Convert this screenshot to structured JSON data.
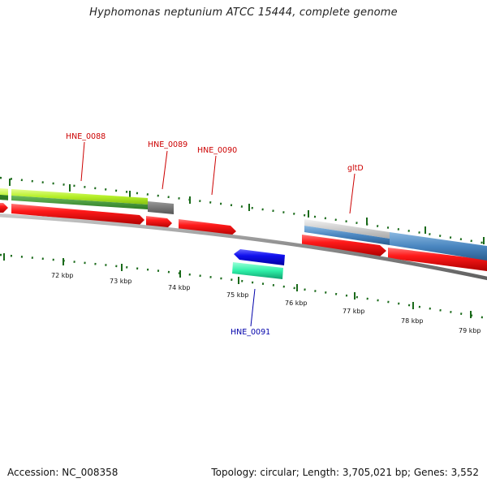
{
  "title": "Hyphomonas neptunium ATCC 15444, complete genome",
  "footer": {
    "accession": "Accession: NC_008358",
    "summary": "Topology: circular; Length: 3,705,021 bp; Genes: 3,552"
  },
  "colors": {
    "cds_forward": "#ee1111",
    "cds_reverse": "#1111dd",
    "backbone": "#7a7a7a",
    "tick": "#1a6a1a",
    "label_forward": "#cc0000",
    "label_reverse": "#0000aa"
  },
  "gene_labels": [
    {
      "text": "HNE_0088",
      "strand": "forward"
    },
    {
      "text": "HNE_0089",
      "strand": "forward"
    },
    {
      "text": "HNE_0090",
      "strand": "forward"
    },
    {
      "text": "gltD",
      "strand": "forward"
    },
    {
      "text": "HNE_0091",
      "strand": "reverse"
    }
  ],
  "ticks": [
    "72 kbp",
    "73 kbp",
    "74 kbp",
    "75 kbp",
    "76 kbp",
    "77 kbp",
    "78 kbp",
    "79 kbp"
  ]
}
